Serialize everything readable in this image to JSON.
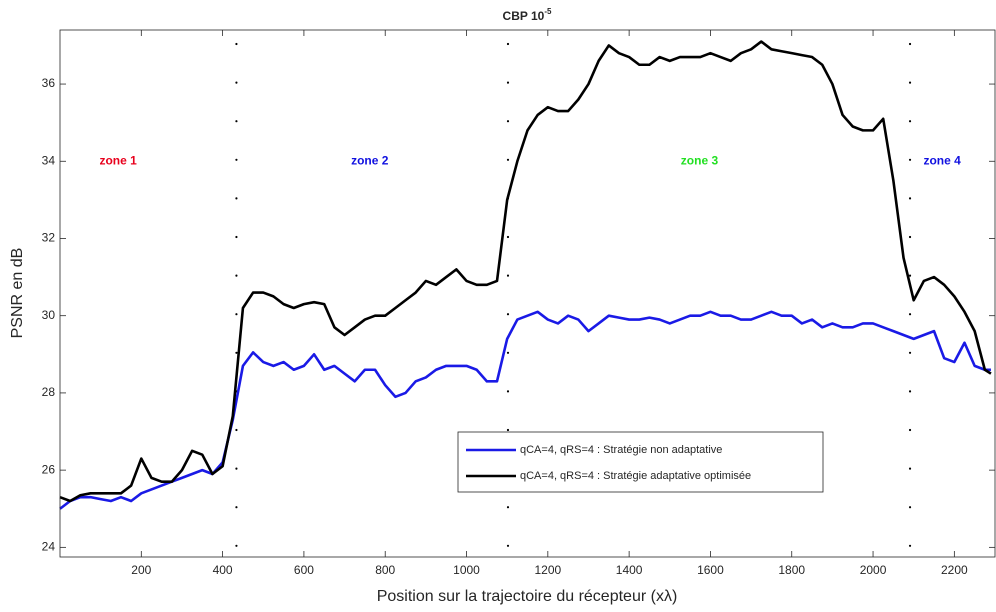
{
  "chart_data": {
    "type": "line",
    "title": "CBP 10",
    "title_superscript": "-5",
    "x_label": "Position sur la trajectoire du récepteur (xλ)",
    "y_label": "PSNR en dB",
    "xlim": [
      0,
      2300
    ],
    "ylim": [
      23.75,
      37.4
    ],
    "xticks": [
      200,
      400,
      600,
      800,
      1000,
      1200,
      1400,
      1600,
      1800,
      2000,
      2200
    ],
    "yticks": [
      24,
      26,
      28,
      30,
      32,
      34,
      36
    ],
    "grid": false,
    "legend": "lower-right",
    "dividers": [
      434,
      1102,
      2091
    ],
    "annotations": [
      {
        "text": "zone 1",
        "x": 143,
        "y": 34,
        "color": "#e8001c"
      },
      {
        "text": "zone 2",
        "x": 762,
        "y": 34,
        "color": "#1010e0"
      },
      {
        "text": "zone 3",
        "x": 1573,
        "y": 34,
        "color": "#22e022"
      },
      {
        "text": "zone 4",
        "x": 2170,
        "y": 34,
        "color": "#1010e0"
      }
    ],
    "x": [
      0,
      25,
      50,
      75,
      100,
      125,
      150,
      175,
      200,
      225,
      250,
      275,
      300,
      325,
      350,
      375,
      400,
      425,
      450,
      475,
      500,
      525,
      550,
      575,
      600,
      625,
      650,
      675,
      700,
      725,
      750,
      775,
      800,
      825,
      850,
      875,
      900,
      925,
      950,
      975,
      1000,
      1025,
      1050,
      1075,
      1100,
      1125,
      1150,
      1175,
      1200,
      1225,
      1250,
      1275,
      1300,
      1325,
      1350,
      1375,
      1400,
      1425,
      1450,
      1475,
      1500,
      1525,
      1550,
      1575,
      1600,
      1625,
      1650,
      1675,
      1700,
      1725,
      1750,
      1775,
      1800,
      1825,
      1850,
      1875,
      1900,
      1925,
      1950,
      1975,
      2000,
      2025,
      2050,
      2075,
      2100,
      2125,
      2150,
      2175,
      2200,
      2225,
      2250,
      2275,
      2290
    ],
    "series": [
      {
        "name": "qCA=4, qRS=4 : Stratégie non adaptative",
        "color": "#1a1ae6",
        "values": [
          25.0,
          25.2,
          25.3,
          25.3,
          25.25,
          25.2,
          25.3,
          25.2,
          25.4,
          25.5,
          25.6,
          25.7,
          25.8,
          25.9,
          26.0,
          25.9,
          26.2,
          27.3,
          28.7,
          29.05,
          28.8,
          28.7,
          28.8,
          28.6,
          28.7,
          29.0,
          28.6,
          28.7,
          28.5,
          28.3,
          28.6,
          28.6,
          28.2,
          27.9,
          28.0,
          28.3,
          28.4,
          28.6,
          28.7,
          28.7,
          28.7,
          28.6,
          28.3,
          28.3,
          29.4,
          29.9,
          30.0,
          30.1,
          29.9,
          29.8,
          30.0,
          29.9,
          29.6,
          29.8,
          30.0,
          29.95,
          29.9,
          29.9,
          29.95,
          29.9,
          29.8,
          29.9,
          30.0,
          30.0,
          30.1,
          30.0,
          30.0,
          29.9,
          29.9,
          30.0,
          30.1,
          30.0,
          30.0,
          29.8,
          29.9,
          29.7,
          29.8,
          29.7,
          29.7,
          29.8,
          29.8,
          29.7,
          29.6,
          29.5,
          29.4,
          29.5,
          29.6,
          28.9,
          28.8,
          29.3,
          28.7,
          28.6,
          28.6
        ]
      },
      {
        "name": "qCA=4, qRS=4 : Stratégie adaptative optimisée",
        "color": "#000000",
        "values": [
          25.3,
          25.2,
          25.35,
          25.4,
          25.4,
          25.4,
          25.4,
          25.6,
          26.3,
          25.8,
          25.7,
          25.7,
          26.0,
          26.5,
          26.4,
          25.9,
          26.1,
          27.4,
          30.2,
          30.6,
          30.6,
          30.5,
          30.3,
          30.2,
          30.3,
          30.35,
          30.3,
          29.7,
          29.5,
          29.7,
          29.9,
          30.0,
          30.0,
          30.2,
          30.4,
          30.6,
          30.9,
          30.8,
          31.0,
          31.2,
          30.9,
          30.8,
          30.8,
          30.9,
          33.0,
          34.0,
          34.8,
          35.2,
          35.4,
          35.3,
          35.3,
          35.6,
          36.0,
          36.6,
          37.0,
          36.8,
          36.7,
          36.5,
          36.5,
          36.7,
          36.6,
          36.7,
          36.7,
          36.7,
          36.8,
          36.7,
          36.6,
          36.8,
          36.9,
          37.1,
          36.9,
          36.85,
          36.8,
          36.75,
          36.7,
          36.5,
          36.0,
          35.2,
          34.9,
          34.8,
          34.8,
          35.1,
          33.5,
          31.5,
          30.4,
          30.9,
          31.0,
          30.8,
          30.5,
          30.1,
          29.6,
          28.6,
          28.5
        ]
      }
    ]
  }
}
